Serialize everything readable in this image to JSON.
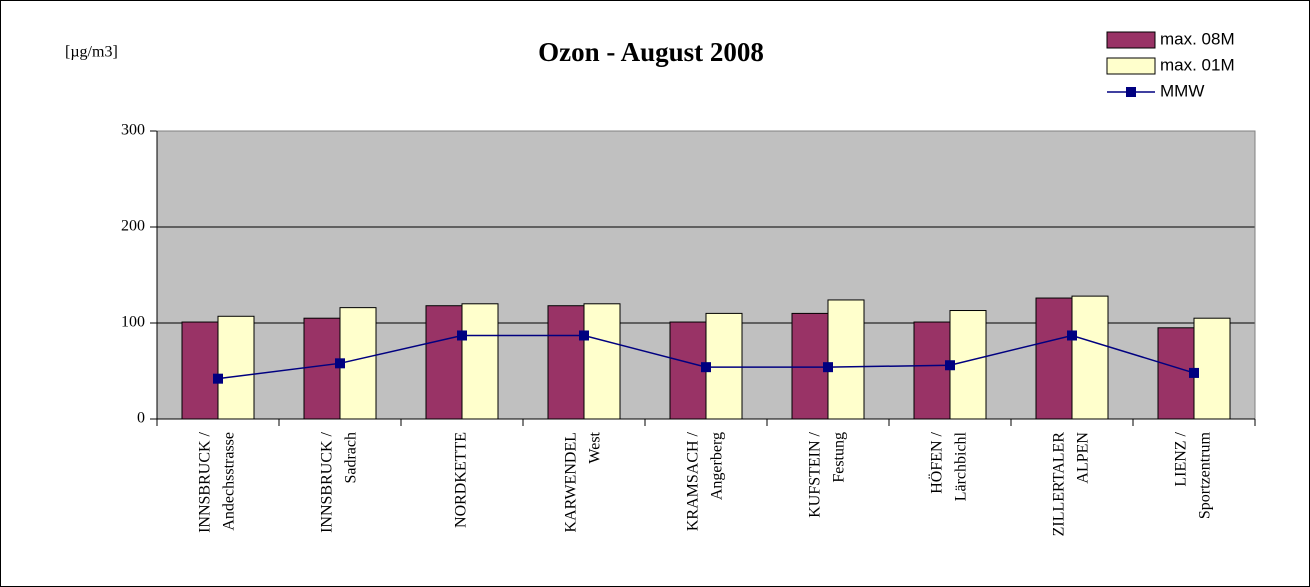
{
  "chart_data": {
    "type": "bar",
    "title": "Ozon - August 2008",
    "y_label": "[µg/m3]",
    "categories": [
      [
        "INNSBRUCK /",
        "Andechsstrasse"
      ],
      [
        "INNSBRUCK /",
        "Sadrach"
      ],
      [
        "NORDKETTE"
      ],
      [
        "KARWENDEL",
        "West"
      ],
      [
        "KRAMSACH /",
        "Angerberg"
      ],
      [
        "KUFSTEIN /",
        "Festung"
      ],
      [
        "HÖFEN /",
        "Lärchbichl"
      ],
      [
        "ZILLERTALER",
        "ALPEN"
      ],
      [
        "LIENZ /",
        "Sportzentrum"
      ]
    ],
    "series": [
      {
        "name": "max. 08M",
        "type": "bar",
        "color": "#993366",
        "values": [
          101,
          105,
          118,
          118,
          101,
          110,
          101,
          126,
          95
        ]
      },
      {
        "name": "max. 01M",
        "type": "bar",
        "color": "#ffffcc",
        "values": [
          107,
          116,
          120,
          120,
          110,
          124,
          113,
          128,
          105
        ]
      },
      {
        "name": "MMW",
        "type": "line",
        "color": "#000080",
        "values": [
          42,
          58,
          87,
          87,
          54,
          54,
          56,
          87,
          48
        ]
      }
    ],
    "ylim": [
      0,
      300
    ],
    "yticks": [
      0,
      100,
      200,
      300
    ],
    "grid": true,
    "legend": "top-right"
  }
}
